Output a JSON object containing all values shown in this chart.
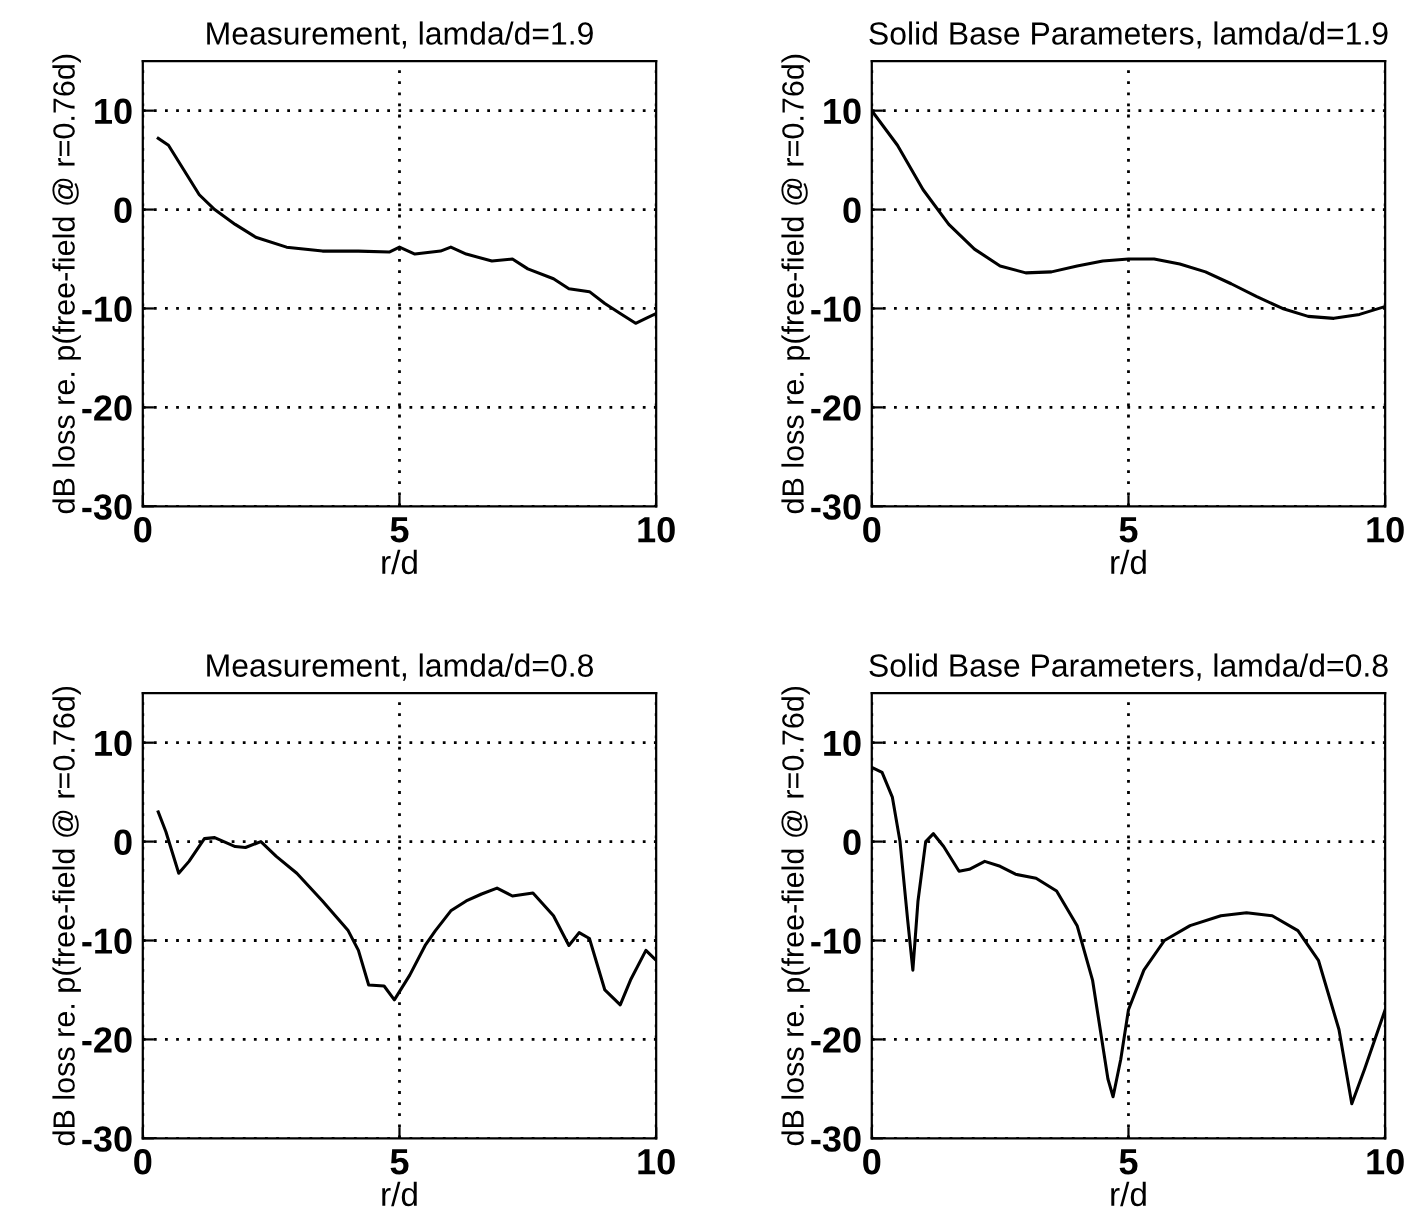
{
  "chart_data": [
    {
      "type": "line",
      "title": "Measurement, lamda/d=1.9",
      "xlabel": "r/d",
      "ylabel": "dB loss re. p(free-field @ r=0.76d)",
      "xlim": [
        0,
        10
      ],
      "xticks": [
        0,
        5,
        10
      ],
      "ylim": [
        -30,
        15
      ],
      "yticks": [
        -30,
        -20,
        -10,
        0,
        10
      ],
      "grid": true,
      "line_style": "solid",
      "series": [
        {
          "color": "#000000",
          "x": [
            0.3,
            0.5,
            0.8,
            1.1,
            1.4,
            1.8,
            2.2,
            2.8,
            3.5,
            4.2,
            4.8,
            5.0,
            5.3,
            5.8,
            6.0,
            6.3,
            6.8,
            7.2,
            7.5,
            8.0,
            8.3,
            8.7,
            9.0,
            9.3,
            9.6,
            9.8,
            10.0
          ],
          "values": [
            7.2,
            6.5,
            4,
            1.5,
            0,
            -1.5,
            -2.8,
            -3.8,
            -4.2,
            -4.2,
            -4.3,
            -3.8,
            -4.5,
            -4.2,
            -3.8,
            -4.5,
            -5.2,
            -5,
            -6,
            -7,
            -8,
            -8.3,
            -9.5,
            -10.5,
            -11.5,
            -11,
            -10.5
          ]
        }
      ]
    },
    {
      "type": "line",
      "title": "Solid Base Parameters, lamda/d=1.9",
      "xlabel": "r/d",
      "ylabel": "dB loss re. p(free-field @ r=0.76d)",
      "xlim": [
        0,
        10
      ],
      "xticks": [
        0,
        5,
        10
      ],
      "ylim": [
        -30,
        15
      ],
      "yticks": [
        -30,
        -20,
        -10,
        0,
        10
      ],
      "grid": true,
      "line_style": "solid",
      "series": [
        {
          "color": "#000000",
          "x": [
            0,
            0.5,
            1,
            1.5,
            2,
            2.5,
            3,
            3.5,
            4,
            4.5,
            5,
            5.5,
            6,
            6.5,
            7,
            7.5,
            8,
            8.5,
            9,
            9.5,
            10
          ],
          "values": [
            10,
            6.5,
            2,
            -1.5,
            -4,
            -5.7,
            -6.4,
            -6.3,
            -5.7,
            -5.2,
            -5,
            -5,
            -5.5,
            -6.3,
            -7.5,
            -8.8,
            -10,
            -10.8,
            -11,
            -10.6,
            -9.8
          ]
        }
      ]
    },
    {
      "type": "line",
      "title": "Measurement, lamda/d=0.8",
      "xlabel": "r/d",
      "ylabel": "dB loss re. p(free-field @ r=0.76d)",
      "xlim": [
        0,
        10
      ],
      "xticks": [
        0,
        5,
        10
      ],
      "ylim": [
        -30,
        15
      ],
      "yticks": [
        -30,
        -20,
        -10,
        0,
        10
      ],
      "grid": true,
      "line_style": "solid",
      "series": [
        {
          "color": "#000000",
          "x": [
            0.3,
            0.45,
            0.7,
            0.9,
            1.2,
            1.4,
            1.8,
            2.0,
            2.3,
            2.6,
            3.0,
            3.5,
            4.0,
            4.2,
            4.4,
            4.7,
            4.9,
            5.2,
            5.5,
            5.7,
            6.0,
            6.3,
            6.6,
            6.9,
            7.2,
            7.6,
            8.0,
            8.3,
            8.5,
            8.7,
            9.0,
            9.3,
            9.5,
            9.8,
            10.0
          ],
          "values": [
            3,
            1,
            -3.2,
            -2,
            0.3,
            0.4,
            -0.5,
            -0.6,
            0,
            -1.5,
            -3.2,
            -6,
            -9,
            -11,
            -14.5,
            -14.6,
            -16,
            -13.5,
            -10.5,
            -9,
            -7,
            -6,
            -5.3,
            -4.7,
            -5.5,
            -5.2,
            -7.5,
            -10.5,
            -9.2,
            -9.8,
            -15,
            -16.5,
            -14,
            -11,
            -12
          ]
        }
      ]
    },
    {
      "type": "line",
      "title": "Solid Base Parameters, lamda/d=0.8",
      "xlabel": "r/d",
      "ylabel": "dB loss re. p(free-field @ r=0.76d)",
      "xlim": [
        0,
        10
      ],
      "xticks": [
        0,
        5,
        10
      ],
      "ylim": [
        -30,
        15
      ],
      "yticks": [
        -30,
        -20,
        -10,
        0,
        10
      ],
      "grid": true,
      "line_style": "solid",
      "series": [
        {
          "color": "#000000",
          "x": [
            0,
            0.2,
            0.4,
            0.55,
            0.7,
            0.8,
            0.9,
            1.05,
            1.2,
            1.4,
            1.7,
            1.9,
            2.2,
            2.5,
            2.8,
            3.2,
            3.6,
            4.0,
            4.3,
            4.6,
            4.7,
            4.85,
            5.0,
            5.3,
            5.7,
            6.2,
            6.8,
            7.3,
            7.8,
            8.3,
            8.7,
            9.1,
            9.35,
            9.6,
            10.0
          ],
          "values": [
            7.5,
            7,
            4.5,
            0,
            -8,
            -13,
            -6,
            0,
            0.8,
            -0.5,
            -3,
            -2.8,
            -2,
            -2.5,
            -3.3,
            -3.7,
            -5,
            -8.5,
            -14,
            -24,
            -25.8,
            -22,
            -17,
            -13,
            -10,
            -8.5,
            -7.5,
            -7.2,
            -7.5,
            -9,
            -12,
            -19,
            -26.5,
            -23,
            -17
          ]
        }
      ]
    }
  ]
}
